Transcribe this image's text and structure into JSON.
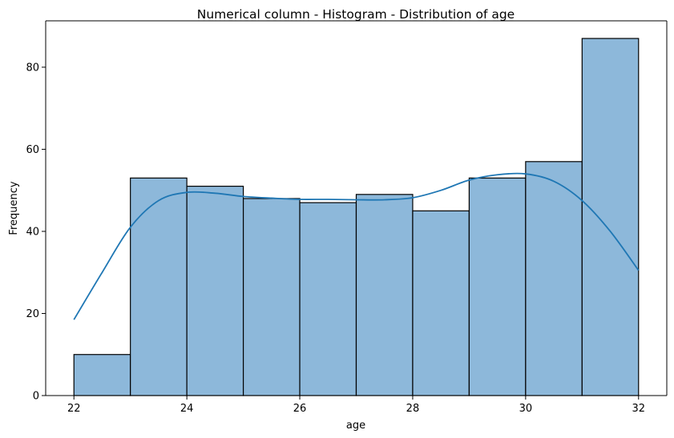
{
  "chart_data": {
    "type": "bar",
    "title": "Numerical column - Histogram - Distribution of age",
    "xlabel": "age",
    "ylabel": "Frequency",
    "bins": [
      {
        "start": 22,
        "end": 23,
        "count": 10
      },
      {
        "start": 23,
        "end": 24,
        "count": 53
      },
      {
        "start": 24,
        "end": 25,
        "count": 51
      },
      {
        "start": 25,
        "end": 26,
        "count": 48
      },
      {
        "start": 26,
        "end": 27,
        "count": 47
      },
      {
        "start": 27,
        "end": 28,
        "count": 49
      },
      {
        "start": 28,
        "end": 29,
        "count": 45
      },
      {
        "start": 29,
        "end": 30,
        "count": 53
      },
      {
        "start": 30,
        "end": 31,
        "count": 57
      },
      {
        "start": 31,
        "end": 32,
        "count": 87
      }
    ],
    "kde": {
      "x": [
        22,
        22.5,
        23,
        23.5,
        24,
        24.5,
        25,
        25.5,
        26,
        26.5,
        27,
        27.5,
        28,
        28.5,
        29,
        29.5,
        30,
        30.5,
        31,
        31.5,
        32
      ],
      "y": [
        18.5,
        30,
        41,
        47.5,
        49.5,
        49.3,
        48.5,
        48.1,
        47.8,
        47.8,
        47.7,
        47.7,
        48.2,
        50,
        52.5,
        53.8,
        54,
        52.2,
        47.5,
        40,
        30.5
      ]
    },
    "xticks": [
      22,
      24,
      26,
      28,
      30,
      32
    ],
    "yticks": [
      0,
      20,
      40,
      60,
      80
    ],
    "xlim": [
      21.5,
      32.5
    ],
    "ylim": [
      0,
      91.3
    ],
    "grid": false,
    "colors": {
      "bar_fill": "#8db8da",
      "bar_edge": "#000000",
      "kde_line": "#1f77b4"
    }
  }
}
